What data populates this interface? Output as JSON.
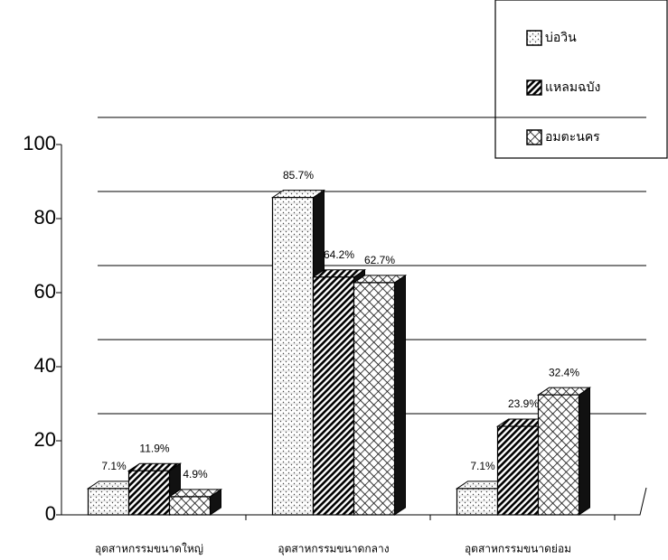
{
  "chart_data": {
    "type": "bar",
    "categories": [
      "อุตสาหกรรมขนาดใหญ่",
      "อุตสาหกรรมขนาดกลาง",
      "อุตสาหกรรมขนาดย่อม"
    ],
    "series": [
      {
        "name": "บ่อวิน",
        "color": "#ffffff",
        "values": [
          7.1,
          85.7,
          7.1
        ],
        "value_labels": [
          "7.1%",
          "85.7%",
          "7.1%"
        ]
      },
      {
        "name": "แหลมฉบัง",
        "color": "#000000",
        "values": [
          11.9,
          64.2,
          23.9
        ],
        "value_labels": [
          "11.9%",
          "64.2%",
          "23.9%"
        ]
      },
      {
        "name": "อมตะนคร",
        "color": "#ffffff",
        "values": [
          4.9,
          62.7,
          32.4
        ],
        "value_labels": [
          "4.9%",
          "62.7%",
          "32.4%"
        ]
      }
    ],
    "ylim": [
      0,
      100
    ],
    "yticks": [
      0,
      20,
      40,
      60,
      80,
      100
    ],
    "grid": true,
    "legend": "top-right"
  }
}
